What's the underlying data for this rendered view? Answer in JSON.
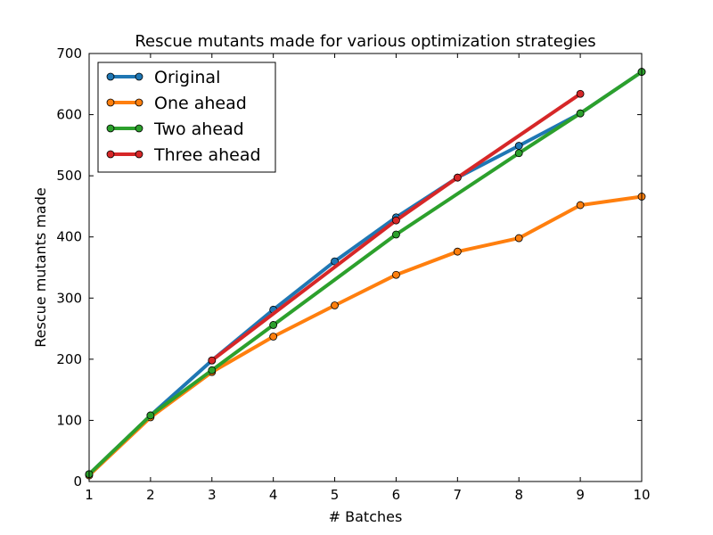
{
  "chart_data": {
    "type": "line",
    "title": "Rescue mutants made for various optimization strategies",
    "xlabel": "# Batches",
    "ylabel": "Rescue mutants made",
    "xlim": [
      1,
      10
    ],
    "ylim": [
      0,
      700
    ],
    "xticks": [
      1,
      2,
      3,
      4,
      5,
      6,
      7,
      8,
      9,
      10
    ],
    "yticks": [
      0,
      100,
      200,
      300,
      400,
      500,
      600,
      700
    ],
    "grid": false,
    "legend_position": "top-left",
    "series": [
      {
        "name": "Original",
        "color": "#1f77b4",
        "x": [
          1,
          2,
          3,
          4,
          5,
          6,
          7,
          8,
          9,
          10
        ],
        "values": [
          12,
          108,
          198,
          281,
          360,
          432,
          497,
          549,
          602,
          670
        ]
      },
      {
        "name": "One ahead",
        "color": "#ff7f0e",
        "x": [
          1,
          2,
          3,
          4,
          5,
          6,
          7,
          8,
          9,
          10
        ],
        "values": [
          10,
          105,
          179,
          237,
          288,
          338,
          376,
          398,
          452,
          466
        ]
      },
      {
        "name": "Two ahead",
        "color": "#2ca02c",
        "x": [
          1,
          2,
          3,
          4,
          6,
          8,
          9,
          10
        ],
        "values": [
          12,
          108,
          182,
          256,
          404,
          537,
          602,
          670
        ]
      },
      {
        "name": "Three ahead",
        "color": "#d62728",
        "x": [
          3,
          6,
          7,
          9
        ],
        "values": [
          198,
          427,
          497,
          634
        ]
      }
    ]
  }
}
